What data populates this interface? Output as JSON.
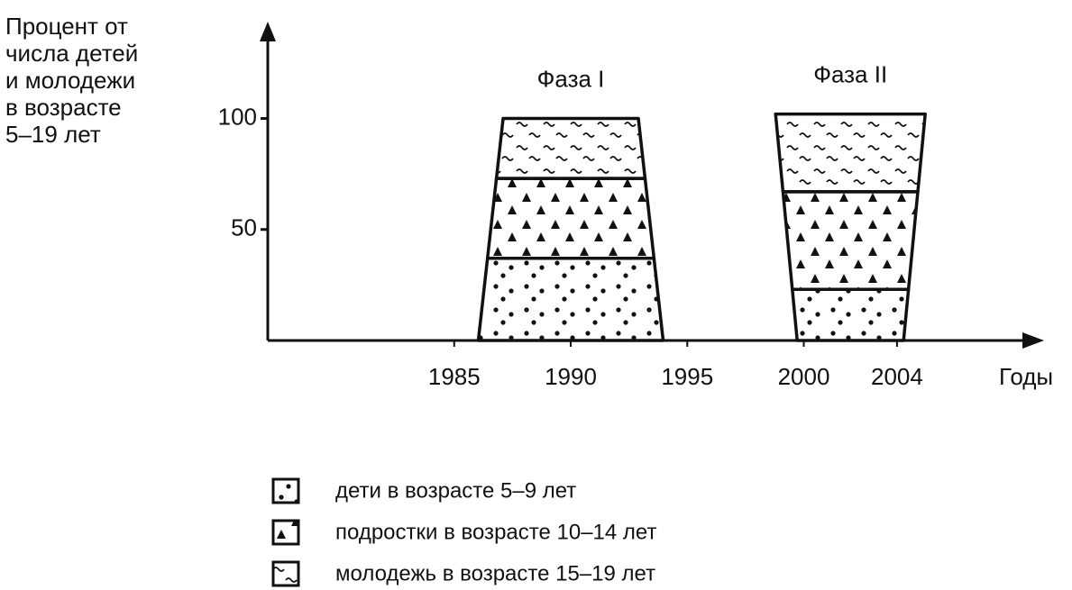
{
  "chart_data": {
    "type": "bar",
    "stacked": true,
    "ylabel": "Процент от\nчисла детей\nи молодежи\nв возрасте\n5–19 лет",
    "xlabel": "Годы",
    "categories": [
      "Фаза I",
      "Фаза II"
    ],
    "x": [
      1990,
      2002
    ],
    "series": [
      {
        "name": "дети в возрасте 5–9 лет",
        "pattern": "dots",
        "color": "#111111",
        "values": [
          37,
          23
        ]
      },
      {
        "name": "подростки в возрасте 10–14 лет",
        "pattern": "triangles",
        "color": "#111111",
        "values": [
          36,
          44
        ]
      },
      {
        "name": "молодежь в возрасте 15–19 лет",
        "pattern": "tildes",
        "color": "#111111",
        "values": [
          27,
          35
        ]
      }
    ],
    "xlim": [
      1977,
      2010
    ],
    "xticks": [
      1985,
      1990,
      1995,
      2000,
      2004
    ],
    "ylim": [
      0,
      142
    ],
    "yticks": [
      50,
      100
    ],
    "grid": false
  }
}
